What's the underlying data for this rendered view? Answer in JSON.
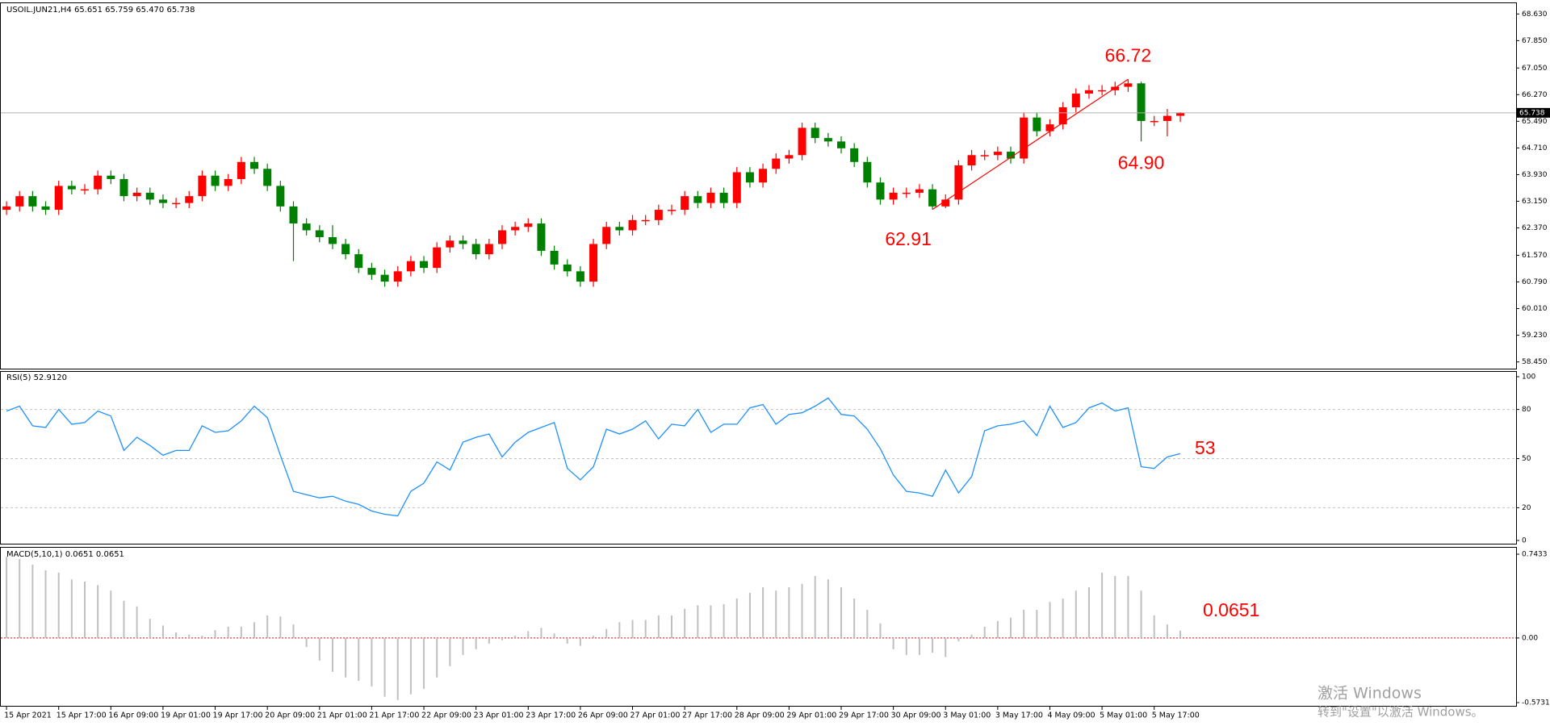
{
  "chart_data": [
    {
      "type": "candlestick",
      "title": "USOIL.JUN21,H4 65.651 65.759 65.470 65.738",
      "up_color": "#ff0000",
      "down_color": "#008000",
      "xlim": [
        -0.5,
        115.5
      ],
      "ylim": [
        58.3,
        68.85
      ],
      "yticks": [
        {
          "value": 68.63,
          "label": "68.630"
        },
        {
          "value": 67.85,
          "label": "67.850"
        },
        {
          "value": 67.05,
          "label": "67.050"
        },
        {
          "value": 66.27,
          "label": "66.270"
        },
        {
          "value": 65.49,
          "label": "65.490"
        },
        {
          "value": 64.71,
          "label": "64.710"
        },
        {
          "value": 63.93,
          "label": "63.930"
        },
        {
          "value": 63.15,
          "label": "63.150"
        },
        {
          "value": 62.37,
          "label": "62.370"
        },
        {
          "value": 61.57,
          "label": "61.570"
        },
        {
          "value": 60.79,
          "label": "60.790"
        },
        {
          "value": 60.01,
          "label": "60.010"
        },
        {
          "value": 59.23,
          "label": "59.230"
        },
        {
          "value": 58.45,
          "label": "58.450"
        }
      ],
      "annotations": [
        "66.72",
        "64.90",
        "62.91"
      ],
      "annotation_color": "#ff0000",
      "ohlc": [
        [
          62.9,
          63.15,
          62.75,
          63.0
        ],
        [
          63.0,
          63.45,
          62.85,
          63.3
        ],
        [
          63.3,
          63.45,
          62.85,
          63.0
        ],
        [
          63.0,
          63.15,
          62.75,
          62.9
        ],
        [
          62.9,
          63.75,
          62.75,
          63.6
        ],
        [
          63.6,
          63.75,
          63.35,
          63.5
        ],
        [
          63.5,
          63.65,
          63.35,
          63.5
        ],
        [
          63.5,
          64.05,
          63.35,
          63.9
        ],
        [
          63.9,
          64.05,
          63.65,
          63.8
        ],
        [
          63.8,
          63.95,
          63.15,
          63.3
        ],
        [
          63.3,
          63.55,
          63.15,
          63.4
        ],
        [
          63.4,
          63.55,
          63.05,
          63.2
        ],
        [
          63.2,
          63.35,
          62.95,
          63.1
        ],
        [
          63.1,
          63.25,
          62.95,
          63.1
        ],
        [
          63.1,
          63.45,
          62.95,
          63.3
        ],
        [
          63.3,
          64.05,
          63.15,
          63.9
        ],
        [
          63.9,
          64.05,
          63.45,
          63.6
        ],
        [
          63.6,
          63.95,
          63.45,
          63.8
        ],
        [
          63.8,
          64.45,
          63.65,
          64.3
        ],
        [
          64.3,
          64.45,
          63.95,
          64.1
        ],
        [
          64.1,
          64.25,
          63.45,
          63.6
        ],
        [
          63.6,
          63.75,
          62.85,
          63.0
        ],
        [
          63.0,
          63.15,
          61.4,
          62.5
        ],
        [
          62.5,
          62.65,
          62.15,
          62.3
        ],
        [
          62.3,
          62.45,
          61.95,
          62.1
        ],
        [
          62.1,
          62.45,
          61.75,
          61.9
        ],
        [
          61.9,
          62.05,
          61.45,
          61.6
        ],
        [
          61.6,
          61.75,
          61.05,
          61.2
        ],
        [
          61.2,
          61.35,
          60.85,
          61.0
        ],
        [
          61.0,
          61.15,
          60.65,
          60.8
        ],
        [
          60.8,
          61.25,
          60.65,
          61.1
        ],
        [
          61.1,
          61.55,
          60.95,
          61.4
        ],
        [
          61.4,
          61.55,
          61.05,
          61.2
        ],
        [
          61.2,
          61.95,
          61.05,
          61.8
        ],
        [
          61.8,
          62.15,
          61.65,
          62.0
        ],
        [
          62.0,
          62.15,
          61.75,
          61.9
        ],
        [
          61.9,
          62.05,
          61.45,
          61.6
        ],
        [
          61.6,
          62.05,
          61.45,
          61.9
        ],
        [
          61.9,
          62.45,
          61.75,
          62.3
        ],
        [
          62.3,
          62.55,
          62.15,
          62.4
        ],
        [
          62.4,
          62.65,
          62.25,
          62.5
        ],
        [
          62.5,
          62.65,
          61.55,
          61.7
        ],
        [
          61.7,
          61.85,
          61.15,
          61.3
        ],
        [
          61.3,
          61.45,
          60.95,
          61.1
        ],
        [
          61.1,
          61.25,
          60.65,
          60.8
        ],
        [
          60.8,
          62.05,
          60.65,
          61.9
        ],
        [
          61.9,
          62.55,
          61.75,
          62.4
        ],
        [
          62.4,
          62.55,
          62.15,
          62.3
        ],
        [
          62.3,
          62.75,
          62.15,
          62.6
        ],
        [
          62.6,
          62.75,
          62.45,
          62.6
        ],
        [
          62.6,
          63.05,
          62.45,
          62.9
        ],
        [
          62.9,
          63.05,
          62.75,
          62.9
        ],
        [
          62.9,
          63.45,
          62.75,
          63.3
        ],
        [
          63.3,
          63.45,
          62.95,
          63.1
        ],
        [
          63.1,
          63.55,
          62.95,
          63.4
        ],
        [
          63.4,
          63.55,
          62.95,
          63.1
        ],
        [
          63.1,
          64.15,
          62.95,
          64.0
        ],
        [
          64.0,
          64.15,
          63.55,
          63.7
        ],
        [
          63.7,
          64.25,
          63.55,
          64.1
        ],
        [
          64.1,
          64.55,
          63.95,
          64.4
        ],
        [
          64.4,
          64.65,
          64.25,
          64.5
        ],
        [
          64.5,
          65.45,
          64.35,
          65.3
        ],
        [
          65.3,
          65.45,
          64.85,
          65.0
        ],
        [
          65.0,
          65.15,
          64.75,
          64.9
        ],
        [
          64.9,
          65.05,
          64.55,
          64.7
        ],
        [
          64.7,
          64.85,
          64.15,
          64.3
        ],
        [
          64.3,
          64.45,
          63.55,
          63.7
        ],
        [
          63.7,
          63.85,
          63.05,
          63.2
        ],
        [
          63.2,
          63.55,
          63.05,
          63.4
        ],
        [
          63.4,
          63.55,
          63.25,
          63.4
        ],
        [
          63.4,
          63.65,
          63.25,
          63.5
        ],
        [
          63.5,
          63.65,
          62.91,
          63.0
        ],
        [
          63.0,
          63.35,
          62.95,
          63.2
        ],
        [
          63.2,
          64.35,
          63.05,
          64.2
        ],
        [
          64.2,
          64.65,
          64.05,
          64.5
        ],
        [
          64.5,
          64.65,
          64.35,
          64.5
        ],
        [
          64.5,
          64.75,
          64.35,
          64.6
        ],
        [
          64.6,
          64.75,
          64.25,
          64.4
        ],
        [
          64.4,
          65.75,
          64.25,
          65.6
        ],
        [
          65.6,
          65.75,
          65.05,
          65.2
        ],
        [
          65.2,
          65.55,
          65.05,
          65.4
        ],
        [
          65.4,
          66.05,
          65.25,
          65.9
        ],
        [
          65.9,
          66.45,
          65.75,
          66.3
        ],
        [
          66.3,
          66.55,
          66.15,
          66.4
        ],
        [
          66.4,
          66.55,
          66.25,
          66.4
        ],
        [
          66.4,
          66.65,
          66.25,
          66.5
        ],
        [
          66.5,
          66.72,
          66.35,
          66.6
        ],
        [
          66.6,
          66.65,
          64.9,
          65.5
        ],
        [
          65.5,
          65.65,
          65.35,
          65.5
        ],
        [
          65.5,
          65.85,
          65.05,
          65.65
        ],
        [
          65.651,
          65.759,
          65.47,
          65.738
        ]
      ]
    },
    {
      "type": "line",
      "title": "RSI(5) 52.9120",
      "color": "#1e90ff",
      "xlim": [
        -0.5,
        115.5
      ],
      "ylim": [
        0,
        100
      ],
      "yticks": [
        100,
        80,
        50,
        20,
        0
      ],
      "levels": [
        80,
        50,
        20
      ],
      "annotations": [
        "53"
      ],
      "annotation_color": "#ff0000",
      "values": [
        79,
        82,
        70,
        69,
        80,
        71,
        72,
        79,
        76,
        55,
        63,
        58,
        52,
        55,
        55,
        70,
        66,
        67,
        73,
        82,
        75,
        52,
        30,
        28,
        26,
        27,
        24,
        22,
        18,
        16,
        15,
        30,
        35,
        48,
        43,
        60,
        63,
        65,
        51,
        60,
        66,
        69,
        72,
        44,
        37,
        45,
        68,
        65,
        68,
        73,
        62,
        71,
        70,
        80,
        66,
        71,
        71,
        81,
        83,
        71,
        77,
        78,
        82,
        87,
        77,
        76,
        68,
        56,
        40,
        30,
        29,
        27,
        43,
        29,
        39,
        67,
        70,
        71,
        73,
        64,
        82,
        69,
        72,
        81,
        84,
        79,
        81,
        45,
        44,
        51,
        53
      ]
    },
    {
      "type": "bar",
      "title": "MACD(5,10,1) 0.0651 0.0651",
      "color": "#c0c0c0",
      "zero_line_color": "#ff0000",
      "xlim": [
        -0.5,
        115.5
      ],
      "ylim": [
        -0.5731,
        0.7433
      ],
      "yticks": [
        0.7433,
        {
          "value": 0,
          "label": "0.00"
        },
        -0.5731
      ],
      "annotations": [
        "0.0651"
      ],
      "annotation_color": "#ff0000",
      "xticks": [
        {
          "value": 0,
          "label": "15 Apr 2021"
        },
        {
          "value": 4,
          "label": "15 Apr 17:00"
        },
        {
          "value": 8,
          "label": "16 Apr 09:00"
        },
        {
          "value": 12,
          "label": "19 Apr 01:00"
        },
        {
          "value": 16,
          "label": "19 Apr 17:00"
        },
        {
          "value": 20,
          "label": "20 Apr 09:00"
        },
        {
          "value": 24,
          "label": "21 Apr 01:00"
        },
        {
          "value": 28,
          "label": "21 Apr 17:00"
        },
        {
          "value": 32,
          "label": "22 Apr 09:00"
        },
        {
          "value": 36,
          "label": "23 Apr 01:00"
        },
        {
          "value": 40,
          "label": "23 Apr 17:00"
        },
        {
          "value": 44,
          "label": "26 Apr 09:00"
        },
        {
          "value": 48,
          "label": "27 Apr 01:00"
        },
        {
          "value": 52,
          "label": "27 Apr 17:00"
        },
        {
          "value": 56,
          "label": "28 Apr 09:00"
        },
        {
          "value": 60,
          "label": "29 Apr 01:00"
        },
        {
          "value": 64,
          "label": "29 Apr 17:00"
        },
        {
          "value": 68,
          "label": "30 Apr 09:00"
        },
        {
          "value": 72,
          "label": "3 May 01:00"
        },
        {
          "value": 76,
          "label": "3 May 17:00"
        },
        {
          "value": 80,
          "label": "4 May 09:00"
        },
        {
          "value": 84,
          "label": "5 May 01:00"
        },
        {
          "value": 88,
          "label": "5 May 17:00"
        }
      ],
      "values": [
        0.72,
        0.7,
        0.65,
        0.6,
        0.58,
        0.52,
        0.5,
        0.47,
        0.42,
        0.33,
        0.28,
        0.17,
        0.11,
        0.05,
        0.03,
        0.02,
        0.07,
        0.1,
        0.1,
        0.14,
        0.2,
        0.19,
        0.12,
        -0.08,
        -0.2,
        -0.3,
        -0.35,
        -0.38,
        -0.43,
        -0.52,
        -0.55,
        -0.5,
        -0.45,
        -0.35,
        -0.25,
        -0.15,
        -0.1,
        -0.05,
        -0.02,
        0.02,
        0.06,
        0.09,
        0.04,
        -0.05,
        -0.07,
        0.02,
        0.08,
        0.14,
        0.16,
        0.16,
        0.2,
        0.2,
        0.26,
        0.29,
        0.29,
        0.3,
        0.35,
        0.4,
        0.45,
        0.42,
        0.45,
        0.48,
        0.55,
        0.52,
        0.45,
        0.35,
        0.25,
        0.13,
        -0.1,
        -0.15,
        -0.15,
        -0.13,
        -0.17,
        -0.03,
        0.03,
        0.1,
        0.15,
        0.18,
        0.25,
        0.25,
        0.32,
        0.35,
        0.42,
        0.45,
        0.58,
        0.55,
        0.55,
        0.42,
        0.2,
        0.12,
        0.0651
      ]
    }
  ],
  "watermark": [
    "激活 Windows",
    "转到\"设置\"以激活 Windows。"
  ]
}
